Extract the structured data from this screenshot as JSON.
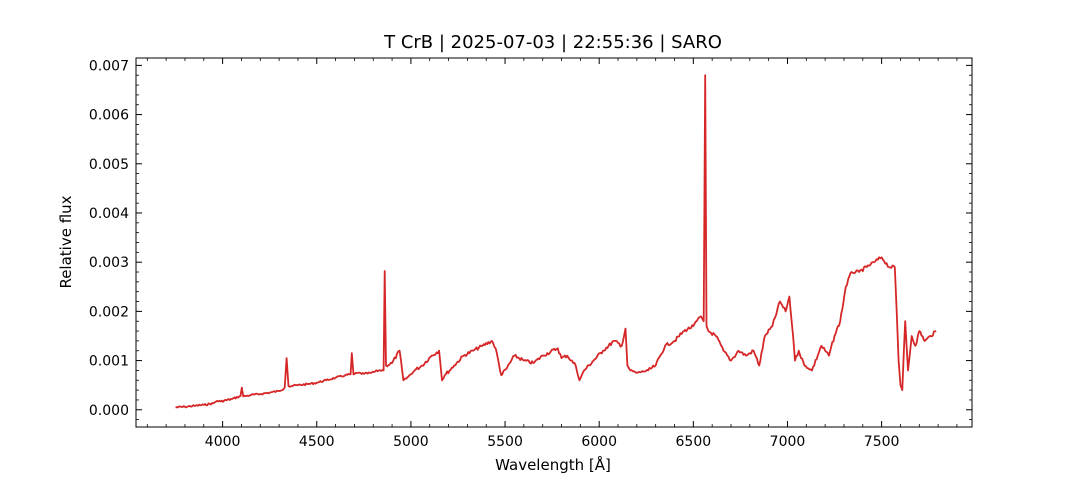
{
  "chart_data": {
    "type": "line",
    "title": "T CrB | 2025-07-03 | 22:55:36 | SARO",
    "xlabel": "Wavelength [Å]",
    "ylabel": "Relative flux",
    "xlim": [
      3540,
      7980
    ],
    "ylim": [
      -0.00035,
      0.00715
    ],
    "x_ticks": [
      4000,
      4500,
      5000,
      5500,
      6000,
      6500,
      7000,
      7500
    ],
    "x_tick_labels": [
      "4000",
      "4500",
      "5000",
      "5500",
      "6000",
      "6500",
      "7000",
      "7500"
    ],
    "y_ticks": [
      0.0,
      0.001,
      0.002,
      0.003,
      0.004,
      0.005,
      0.006,
      0.007
    ],
    "y_tick_labels": [
      "0.000",
      "0.001",
      "0.002",
      "0.003",
      "0.004",
      "0.005",
      "0.006",
      "0.007"
    ],
    "grid": false,
    "line_color": "#d62728",
    "series": [
      {
        "x": [
          3750,
          3800,
          3850,
          3900,
          3950,
          3970,
          3990,
          4050,
          4095,
          4102,
          4110,
          4150,
          4200,
          4250,
          4300,
          4330,
          4340,
          4350,
          4400,
          4450,
          4500,
          4550,
          4600,
          4650,
          4680,
          4686,
          4695,
          4720,
          4750,
          4790,
          4830,
          4855,
          4861,
          4868,
          4900,
          4940,
          4960,
          4980,
          5020,
          5060,
          5110,
          5150,
          5165,
          5180,
          5230,
          5280,
          5330,
          5380,
          5430,
          5450,
          5480,
          5510,
          5550,
          5600,
          5650,
          5700,
          5780,
          5800,
          5830,
          5875,
          5895,
          5920,
          5970,
          6020,
          6080,
          6120,
          6140,
          6150,
          6165,
          6200,
          6260,
          6300,
          6350,
          6400,
          6450,
          6500,
          6540,
          6555,
          6563,
          6570,
          6580,
          6620,
          6660,
          6700,
          6740,
          6780,
          6820,
          6850,
          6880,
          6920,
          6960,
          6990,
          7010,
          7030,
          7040,
          7060,
          7090,
          7130,
          7180,
          7220,
          7250,
          7280,
          7310,
          7340,
          7380,
          7420,
          7460,
          7500,
          7540,
          7570,
          7580,
          7590,
          7600,
          7610,
          7625,
          7640,
          7660,
          7680,
          7700,
          7730,
          7760,
          7790
        ],
        "y": [
          5e-05,
          6e-05,
          8e-05,
          0.0001,
          0.00013,
          0.00018,
          0.00017,
          0.00022,
          0.00028,
          0.00045,
          0.00027,
          0.0003,
          0.00032,
          0.00035,
          0.00038,
          0.00045,
          0.00105,
          0.00048,
          0.0005,
          0.00052,
          0.00055,
          0.0006,
          0.00065,
          0.0007,
          0.00072,
          0.00115,
          0.00072,
          0.00075,
          0.00073,
          0.00075,
          0.0008,
          0.0008,
          0.00282,
          0.0009,
          0.00095,
          0.0012,
          0.0006,
          0.00065,
          0.0008,
          0.0009,
          0.0011,
          0.0012,
          0.0006,
          0.0007,
          0.0009,
          0.0011,
          0.0012,
          0.0013,
          0.0014,
          0.00125,
          0.0007,
          0.00085,
          0.0011,
          0.001,
          0.00095,
          0.0011,
          0.00125,
          0.00105,
          0.0011,
          0.0009,
          0.0006,
          0.0008,
          0.001,
          0.0012,
          0.0014,
          0.0013,
          0.00165,
          0.0009,
          0.0008,
          0.00075,
          0.0008,
          0.0009,
          0.0013,
          0.0014,
          0.0016,
          0.0017,
          0.0019,
          0.0018,
          0.0068,
          0.0017,
          0.0016,
          0.0015,
          0.0012,
          0.001,
          0.0012,
          0.0011,
          0.0012,
          0.0009,
          0.0015,
          0.0017,
          0.0022,
          0.002,
          0.0023,
          0.0015,
          0.001,
          0.0012,
          0.0009,
          0.0008,
          0.0013,
          0.0011,
          0.0015,
          0.0018,
          0.0025,
          0.0028,
          0.0028,
          0.0029,
          0.003,
          0.0031,
          0.0029,
          0.0029,
          0.002,
          0.001,
          0.0005,
          0.0004,
          0.0018,
          0.0008,
          0.0015,
          0.0013,
          0.0016,
          0.0014,
          0.0015,
          0.0016
        ]
      }
    ]
  }
}
